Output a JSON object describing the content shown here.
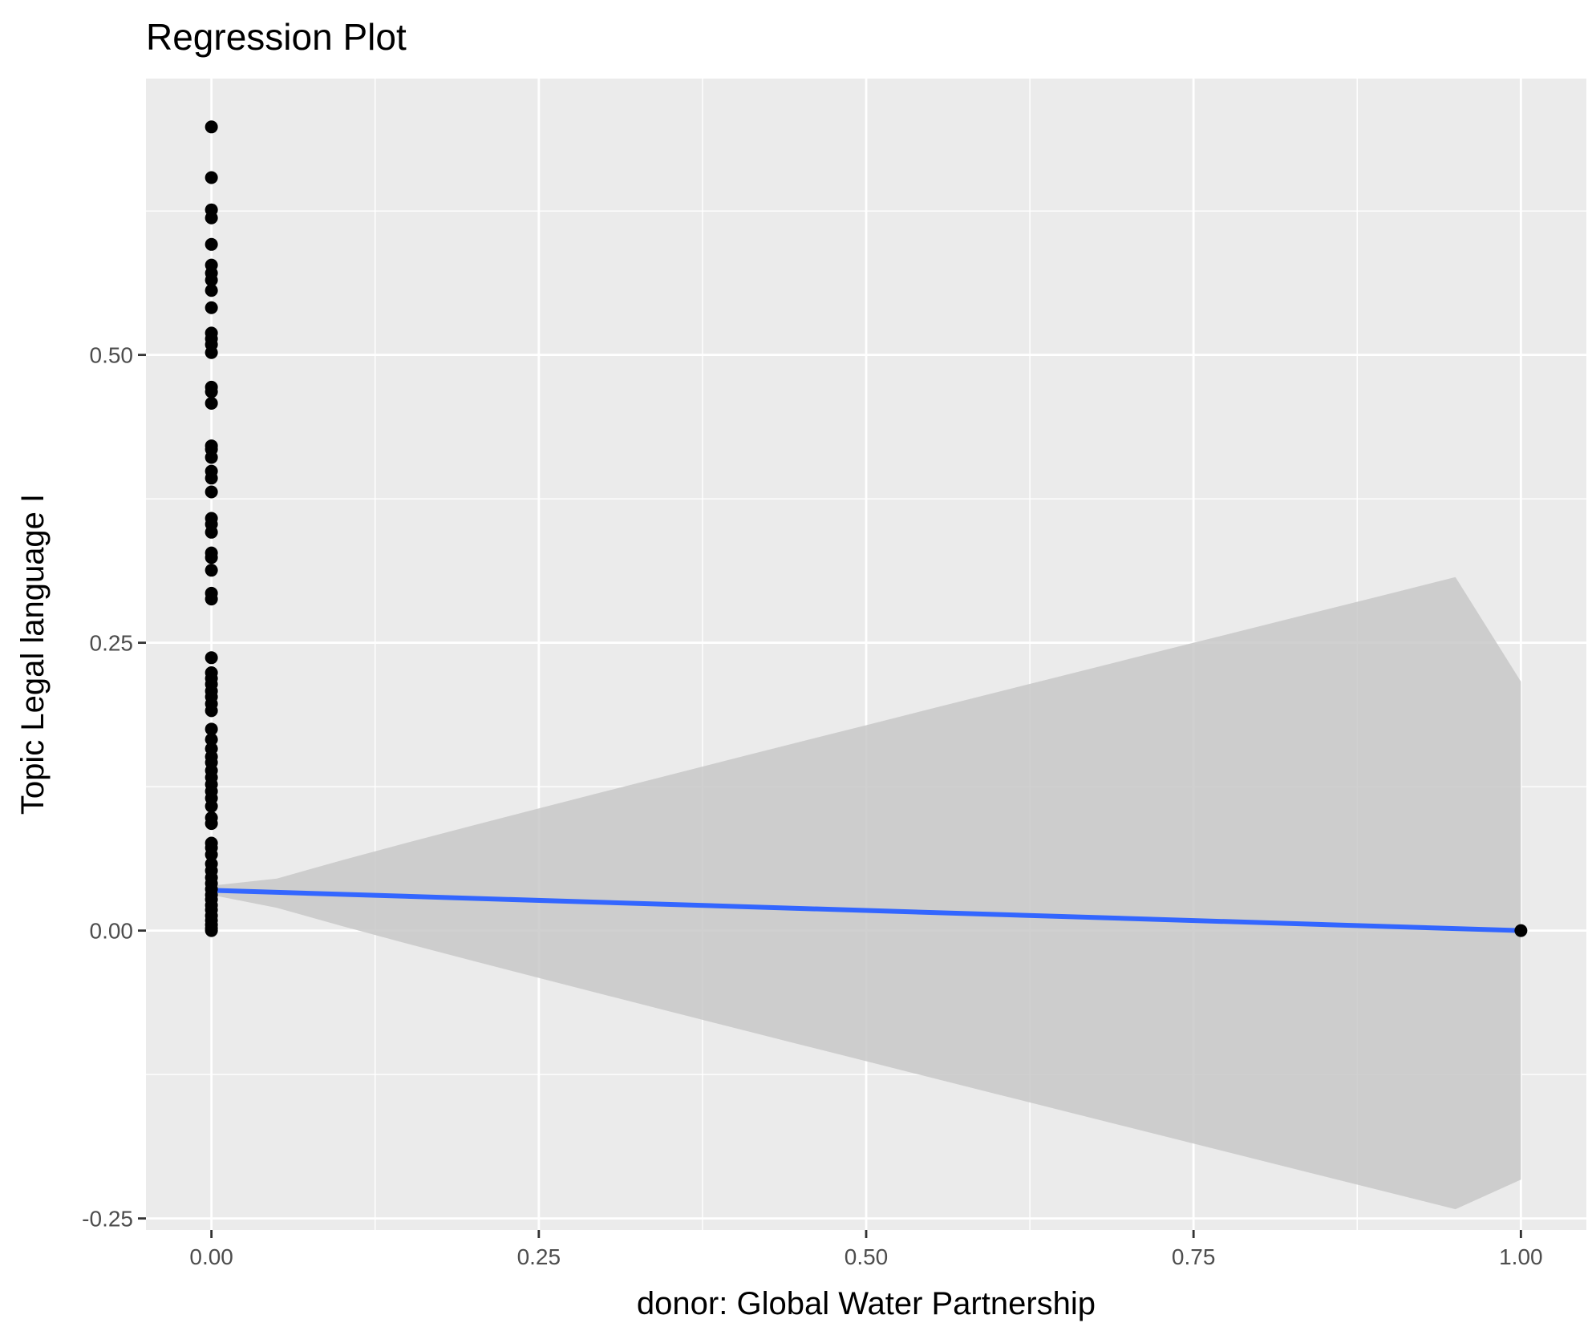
{
  "chart_data": {
    "type": "scatter",
    "title": "Regression Plot",
    "xlabel": "donor: Global Water Partnership",
    "ylabel": "Topic Legal language I",
    "xlim": [
      -0.05,
      1.05
    ],
    "ylim": [
      -0.26,
      0.74
    ],
    "x_ticks": [
      0.0,
      0.25,
      0.5,
      0.75,
      1.0
    ],
    "x_tick_labels": [
      "0.00",
      "0.25",
      "0.50",
      "0.75",
      "1.00"
    ],
    "y_ticks": [
      -0.25,
      0.0,
      0.25,
      0.5
    ],
    "y_tick_labels": [
      "-0.25",
      "0.00",
      "0.25",
      "0.50"
    ],
    "grid": true,
    "legend": "none",
    "colors": {
      "panel": "#ebebeb",
      "grid": "#ffffff",
      "points": "#000000",
      "fit_line": "#3366ff",
      "ribbon": "#c8c8c8"
    },
    "points": {
      "x0_y_values": [
        0.698,
        0.654,
        0.626,
        0.619,
        0.596,
        0.578,
        0.571,
        0.565,
        0.556,
        0.541,
        0.519,
        0.514,
        0.509,
        0.502,
        0.472,
        0.468,
        0.458,
        0.421,
        0.418,
        0.411,
        0.399,
        0.393,
        0.381,
        0.358,
        0.353,
        0.346,
        0.328,
        0.324,
        0.313,
        0.293,
        0.288,
        0.237,
        0.224,
        0.219,
        0.214,
        0.208,
        0.203,
        0.197,
        0.191,
        0.175,
        0.166,
        0.158,
        0.151,
        0.146,
        0.139,
        0.133,
        0.127,
        0.121,
        0.115,
        0.108,
        0.098,
        0.093,
        0.076,
        0.072,
        0.066,
        0.058,
        0.052,
        0.046,
        0.041,
        0.036,
        0.031,
        0.027,
        0.022,
        0.018,
        0.013,
        0.009,
        0.005,
        0.002,
        0.0
      ],
      "x1_y_values": [
        0.0
      ]
    },
    "fit": {
      "x": [
        0.0,
        1.0
      ],
      "y": [
        0.035,
        0.0
      ]
    },
    "confidence_band": {
      "x": [
        0.0,
        0.05,
        0.1,
        0.15,
        0.2,
        0.25,
        0.3,
        0.35,
        0.4,
        0.45,
        0.5,
        0.55,
        0.6,
        0.65,
        0.7,
        0.75,
        0.8,
        0.85,
        0.9,
        0.95,
        1.0
      ],
      "ymin": [
        0.031,
        0.0198,
        0.0038,
        -0.0115,
        -0.0264,
        -0.0411,
        -0.0557,
        -0.0702,
        -0.0847,
        -0.0991,
        -0.1134,
        -0.1278,
        -0.1421,
        -0.1564,
        -0.1707,
        -0.185,
        -0.1992,
        -0.2135,
        -0.2277,
        -0.242,
        -0.2163
      ],
      "ymax": [
        0.039,
        0.0452,
        0.0612,
        0.0765,
        0.0914,
        0.1061,
        0.1207,
        0.1352,
        0.1497,
        0.1641,
        0.1784,
        0.1928,
        0.2071,
        0.2214,
        0.2357,
        0.25,
        0.2642,
        0.2785,
        0.2927,
        0.307,
        0.2163
      ]
    }
  }
}
